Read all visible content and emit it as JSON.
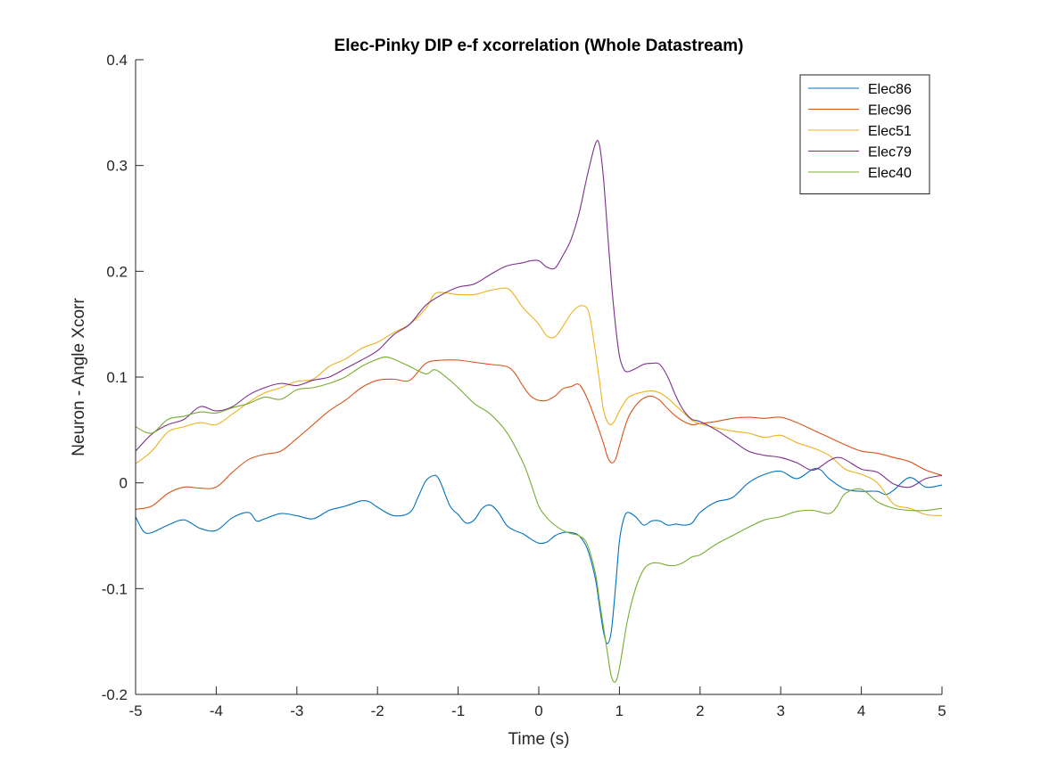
{
  "chart_data": {
    "type": "line",
    "title": "Elec-Pinky DIP e-f xcorrelation (Whole Datastream)",
    "xlabel": "Time (s)",
    "ylabel": "Neuron - Angle Xcorr",
    "xlim": [
      -5,
      5
    ],
    "ylim": [
      -0.2,
      0.4
    ],
    "xticks": [
      -5,
      -4,
      -3,
      -2,
      -1,
      0,
      1,
      2,
      3,
      4,
      5
    ],
    "xtick_labels": [
      "-5",
      "-4",
      "-3",
      "-2",
      "-1",
      "0",
      "1",
      "2",
      "3",
      "4",
      "5"
    ],
    "yticks": [
      -0.2,
      -0.1,
      0,
      0.1,
      0.2,
      0.3,
      0.4
    ],
    "ytick_labels": [
      "-0.2",
      "-0.1",
      "0",
      "0.1",
      "0.2",
      "0.3",
      "0.4"
    ],
    "grid": false,
    "legend_position": "top-right",
    "series": [
      {
        "name": "Elec86",
        "color": "#0072BD",
        "x": [
          -5,
          -4.9,
          -4.8,
          -4.6,
          -4.4,
          -4.2,
          -4.0,
          -3.8,
          -3.6,
          -3.5,
          -3.4,
          -3.2,
          -3.0,
          -2.8,
          -2.6,
          -2.4,
          -2.2,
          -2.1,
          -2.0,
          -1.8,
          -1.6,
          -1.5,
          -1.4,
          -1.3,
          -1.25,
          -1.2,
          -1.1,
          -1.0,
          -0.9,
          -0.8,
          -0.7,
          -0.6,
          -0.5,
          -0.4,
          -0.3,
          -0.2,
          -0.1,
          0.0,
          0.1,
          0.2,
          0.3,
          0.4,
          0.5,
          0.6,
          0.7,
          0.75,
          0.8,
          0.85,
          0.9,
          0.95,
          1.0,
          1.05,
          1.1,
          1.2,
          1.3,
          1.4,
          1.5,
          1.6,
          1.7,
          1.8,
          1.9,
          2.0,
          2.2,
          2.4,
          2.6,
          2.8,
          3.0,
          3.2,
          3.4,
          3.5,
          3.6,
          3.8,
          4.0,
          4.2,
          4.3,
          4.4,
          4.6,
          4.8,
          5.0
        ],
        "y": [
          -0.032,
          -0.046,
          -0.047,
          -0.04,
          -0.035,
          -0.043,
          -0.045,
          -0.033,
          -0.028,
          -0.036,
          -0.034,
          -0.029,
          -0.031,
          -0.034,
          -0.026,
          -0.022,
          -0.017,
          -0.018,
          -0.023,
          -0.031,
          -0.028,
          -0.014,
          0.002,
          0.007,
          0.005,
          -0.003,
          -0.022,
          -0.03,
          -0.038,
          -0.035,
          -0.024,
          -0.021,
          -0.028,
          -0.04,
          -0.045,
          -0.048,
          -0.053,
          -0.057,
          -0.056,
          -0.05,
          -0.047,
          -0.047,
          -0.05,
          -0.062,
          -0.09,
          -0.115,
          -0.14,
          -0.152,
          -0.14,
          -0.1,
          -0.055,
          -0.035,
          -0.028,
          -0.032,
          -0.04,
          -0.036,
          -0.036,
          -0.04,
          -0.039,
          -0.04,
          -0.038,
          -0.028,
          -0.018,
          -0.014,
          0.0,
          0.008,
          0.011,
          0.004,
          0.013,
          0.012,
          0.004,
          -0.006,
          -0.008,
          -0.008,
          -0.011,
          -0.007,
          0.005,
          -0.004,
          -0.002
        ]
      },
      {
        "name": "Elec96",
        "color": "#D95319",
        "x": [
          -5,
          -4.8,
          -4.6,
          -4.4,
          -4.2,
          -4.0,
          -3.8,
          -3.6,
          -3.4,
          -3.2,
          -3.0,
          -2.8,
          -2.6,
          -2.4,
          -2.2,
          -2.0,
          -1.8,
          -1.6,
          -1.4,
          -1.2,
          -1.0,
          -0.8,
          -0.6,
          -0.4,
          -0.3,
          -0.2,
          -0.1,
          0.0,
          0.1,
          0.2,
          0.3,
          0.4,
          0.5,
          0.6,
          0.7,
          0.8,
          0.85,
          0.9,
          0.95,
          1.0,
          1.1,
          1.2,
          1.3,
          1.4,
          1.5,
          1.6,
          1.7,
          1.8,
          1.9,
          2.0,
          2.2,
          2.4,
          2.6,
          2.8,
          3.0,
          3.2,
          3.4,
          3.6,
          3.8,
          4.0,
          4.2,
          4.4,
          4.6,
          4.8,
          5.0
        ],
        "y": [
          -0.025,
          -0.022,
          -0.01,
          -0.004,
          -0.005,
          -0.004,
          0.01,
          0.022,
          0.027,
          0.03,
          0.042,
          0.055,
          0.068,
          0.078,
          0.09,
          0.097,
          0.098,
          0.097,
          0.113,
          0.116,
          0.116,
          0.114,
          0.112,
          0.11,
          0.104,
          0.092,
          0.082,
          0.078,
          0.078,
          0.082,
          0.089,
          0.091,
          0.093,
          0.08,
          0.06,
          0.038,
          0.025,
          0.019,
          0.022,
          0.035,
          0.06,
          0.073,
          0.08,
          0.082,
          0.078,
          0.07,
          0.063,
          0.058,
          0.055,
          0.056,
          0.058,
          0.061,
          0.062,
          0.061,
          0.062,
          0.057,
          0.05,
          0.043,
          0.036,
          0.03,
          0.028,
          0.024,
          0.02,
          0.012,
          0.007
        ]
      },
      {
        "name": "Elec51",
        "color": "#EDB120",
        "x": [
          -5,
          -4.8,
          -4.6,
          -4.4,
          -4.2,
          -4.0,
          -3.8,
          -3.6,
          -3.4,
          -3.2,
          -3.0,
          -2.8,
          -2.6,
          -2.4,
          -2.2,
          -2.0,
          -1.8,
          -1.6,
          -1.4,
          -1.3,
          -1.2,
          -1.0,
          -0.8,
          -0.6,
          -0.4,
          -0.3,
          -0.2,
          -0.1,
          0.0,
          0.1,
          0.2,
          0.3,
          0.4,
          0.5,
          0.6,
          0.65,
          0.7,
          0.75,
          0.8,
          0.85,
          0.9,
          0.95,
          1.0,
          1.1,
          1.2,
          1.3,
          1.4,
          1.5,
          1.6,
          1.7,
          1.8,
          1.9,
          2.0,
          2.2,
          2.4,
          2.6,
          2.8,
          3.0,
          3.2,
          3.4,
          3.6,
          3.8,
          4.0,
          4.2,
          4.4,
          4.6,
          4.8,
          5.0
        ],
        "y": [
          0.018,
          0.03,
          0.048,
          0.053,
          0.057,
          0.055,
          0.065,
          0.076,
          0.085,
          0.09,
          0.096,
          0.098,
          0.11,
          0.117,
          0.127,
          0.133,
          0.142,
          0.15,
          0.165,
          0.178,
          0.18,
          0.178,
          0.178,
          0.182,
          0.184,
          0.177,
          0.166,
          0.158,
          0.15,
          0.139,
          0.138,
          0.148,
          0.16,
          0.167,
          0.165,
          0.15,
          0.125,
          0.098,
          0.07,
          0.058,
          0.055,
          0.06,
          0.068,
          0.08,
          0.084,
          0.086,
          0.087,
          0.085,
          0.08,
          0.073,
          0.066,
          0.059,
          0.056,
          0.052,
          0.049,
          0.047,
          0.043,
          0.045,
          0.038,
          0.033,
          0.026,
          0.013,
          0.008,
          0.0,
          -0.02,
          -0.024,
          -0.03,
          -0.031
        ]
      },
      {
        "name": "Elec79",
        "color": "#7E2F8E",
        "x": [
          -5,
          -4.8,
          -4.6,
          -4.4,
          -4.2,
          -4.0,
          -3.8,
          -3.6,
          -3.4,
          -3.2,
          -3.0,
          -2.8,
          -2.6,
          -2.4,
          -2.2,
          -2.0,
          -1.8,
          -1.6,
          -1.4,
          -1.2,
          -1.0,
          -0.8,
          -0.6,
          -0.4,
          -0.2,
          -0.1,
          0.0,
          0.1,
          0.2,
          0.3,
          0.4,
          0.5,
          0.6,
          0.7,
          0.75,
          0.8,
          0.85,
          0.9,
          0.95,
          1.0,
          1.05,
          1.1,
          1.2,
          1.3,
          1.4,
          1.5,
          1.6,
          1.7,
          1.8,
          1.9,
          2.0,
          2.2,
          2.4,
          2.6,
          2.8,
          3.0,
          3.2,
          3.4,
          3.6,
          3.7,
          3.8,
          4.0,
          4.2,
          4.4,
          4.6,
          4.8,
          5.0
        ],
        "y": [
          0.03,
          0.046,
          0.055,
          0.06,
          0.072,
          0.068,
          0.072,
          0.083,
          0.09,
          0.094,
          0.092,
          0.097,
          0.1,
          0.108,
          0.116,
          0.125,
          0.14,
          0.15,
          0.168,
          0.178,
          0.185,
          0.188,
          0.197,
          0.205,
          0.208,
          0.21,
          0.21,
          0.204,
          0.203,
          0.215,
          0.23,
          0.255,
          0.29,
          0.32,
          0.32,
          0.29,
          0.24,
          0.19,
          0.15,
          0.12,
          0.108,
          0.105,
          0.108,
          0.112,
          0.113,
          0.112,
          0.1,
          0.082,
          0.068,
          0.06,
          0.058,
          0.05,
          0.04,
          0.03,
          0.026,
          0.024,
          0.019,
          0.012,
          0.021,
          0.024,
          0.022,
          0.013,
          0.01,
          -0.001,
          -0.004,
          0.004,
          0.007
        ]
      },
      {
        "name": "Elec40",
        "color": "#77AC30",
        "x": [
          -5,
          -4.8,
          -4.6,
          -4.4,
          -4.2,
          -4.0,
          -3.8,
          -3.6,
          -3.4,
          -3.2,
          -3.0,
          -2.8,
          -2.6,
          -2.4,
          -2.2,
          -2.0,
          -1.9,
          -1.8,
          -1.6,
          -1.4,
          -1.3,
          -1.2,
          -1.0,
          -0.8,
          -0.6,
          -0.4,
          -0.2,
          -0.1,
          0.0,
          0.1,
          0.2,
          0.3,
          0.4,
          0.5,
          0.6,
          0.7,
          0.75,
          0.8,
          0.85,
          0.9,
          0.95,
          1.0,
          1.1,
          1.2,
          1.3,
          1.4,
          1.5,
          1.6,
          1.7,
          1.8,
          1.9,
          2.0,
          2.2,
          2.4,
          2.6,
          2.8,
          3.0,
          3.2,
          3.4,
          3.6,
          3.7,
          3.8,
          4.0,
          4.2,
          4.4,
          4.6,
          4.8,
          5.0
        ],
        "y": [
          0.053,
          0.047,
          0.06,
          0.063,
          0.067,
          0.066,
          0.071,
          0.075,
          0.081,
          0.079,
          0.088,
          0.09,
          0.094,
          0.1,
          0.11,
          0.117,
          0.119,
          0.117,
          0.11,
          0.103,
          0.107,
          0.103,
          0.09,
          0.075,
          0.065,
          0.048,
          0.02,
          0.0,
          -0.022,
          -0.033,
          -0.04,
          -0.045,
          -0.048,
          -0.05,
          -0.058,
          -0.085,
          -0.11,
          -0.135,
          -0.16,
          -0.183,
          -0.188,
          -0.175,
          -0.13,
          -0.1,
          -0.082,
          -0.076,
          -0.076,
          -0.078,
          -0.078,
          -0.075,
          -0.07,
          -0.068,
          -0.058,
          -0.05,
          -0.042,
          -0.035,
          -0.032,
          -0.027,
          -0.026,
          -0.029,
          -0.022,
          -0.01,
          -0.006,
          -0.018,
          -0.024,
          -0.026,
          -0.026,
          -0.024
        ]
      }
    ]
  }
}
